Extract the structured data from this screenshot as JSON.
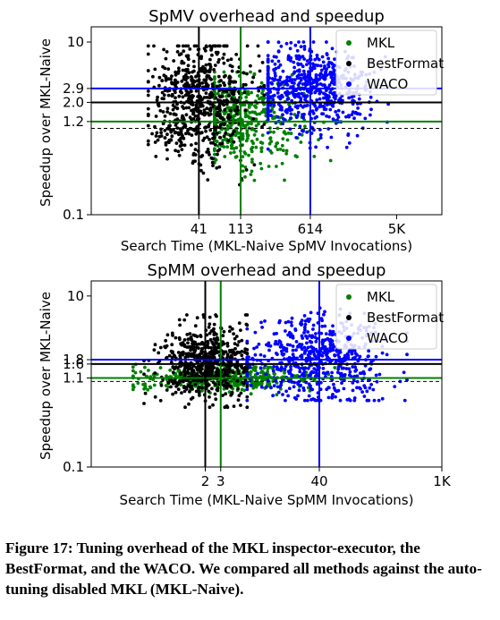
{
  "chart_data": [
    {
      "type": "scatter",
      "title": "SpMV overhead and speedup",
      "xlabel": "Search Time (MKL-Naive SpMV Invocations)",
      "ylabel": "Speedup over MKL-Naive",
      "xscale": "log",
      "yscale": "log",
      "xlim": [
        3,
        15000
      ],
      "ylim": [
        0.1,
        15
      ],
      "xticks": [
        41,
        113,
        614,
        5000
      ],
      "xtick_labels": [
        "41",
        "113",
        "614",
        "5K"
      ],
      "yticks": [
        0.1,
        1.2,
        2.0,
        2.9,
        10
      ],
      "ytick_labels": [
        "0.1",
        "1.2",
        "2.0",
        "2.9",
        "10"
      ],
      "legend": "top-right",
      "baseline": 1.0,
      "series": [
        {
          "name": "MKL",
          "color": "#008000",
          "median_x": 113,
          "median_y": 1.2,
          "cluster": {
            "xmin": 60,
            "xmax": 1600,
            "ymin": 0.25,
            "ymax": 4.5,
            "count": 420
          }
        },
        {
          "name": "BestFormat",
          "color": "#000000",
          "median_x": 41,
          "median_y": 2.0,
          "cluster": {
            "xmin": 12,
            "xmax": 200,
            "ymin": 0.18,
            "ymax": 9,
            "count": 650
          }
        },
        {
          "name": "WACO",
          "color": "#0000ff",
          "median_x": 614,
          "median_y": 2.9,
          "cluster": {
            "xmin": 220,
            "xmax": 9000,
            "ymin": 0.5,
            "ymax": 10,
            "count": 600
          }
        }
      ]
    },
    {
      "type": "scatter",
      "title": "SpMM overhead and speedup",
      "xlabel": "Search Time (MKL-Naive SpMM Invocations)",
      "ylabel": "Speedup over MKL-Naive",
      "xscale": "log",
      "yscale": "log",
      "xlim": [
        0.1,
        1000
      ],
      "ylim": [
        0.1,
        15
      ],
      "xticks": [
        2,
        3,
        40,
        1000
      ],
      "xtick_labels": [
        "2",
        "3",
        "40",
        "1K"
      ],
      "yticks": [
        0.1,
        1.1,
        1.6,
        1.8,
        10
      ],
      "ytick_labels": [
        "0.1",
        "1.1",
        "1.6",
        "1.8",
        "10"
      ],
      "legend": "top-right",
      "baseline": 1.0,
      "series": [
        {
          "name": "MKL",
          "color": "#008000",
          "median_x": 3,
          "median_y": 1.1,
          "cluster": {
            "xmin": 0.3,
            "xmax": 60,
            "ymin": 0.7,
            "ymax": 1.6,
            "count": 420
          }
        },
        {
          "name": "BestFormat",
          "color": "#000000",
          "median_x": 2,
          "median_y": 1.6,
          "cluster": {
            "xmin": 0.4,
            "xmax": 6,
            "ymin": 0.5,
            "ymax": 6,
            "count": 650
          }
        },
        {
          "name": "WACO",
          "color": "#0000ff",
          "median_x": 40,
          "median_y": 1.8,
          "cluster": {
            "xmin": 6,
            "xmax": 400,
            "ymin": 0.6,
            "ymax": 12,
            "count": 600
          }
        }
      ]
    }
  ],
  "caption": "Figure 17: Tuning overhead of the MKL inspector-executor, the BestFormat, and the WACO. We compared all methods against the auto-tuning disabled MKL (MKL-Naive)."
}
